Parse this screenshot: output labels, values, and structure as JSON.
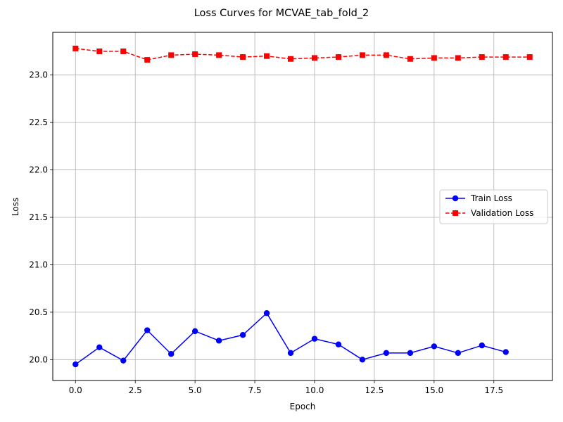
{
  "chart_data": {
    "type": "line",
    "title": "Loss Curves for MCVAE_tab_fold_2",
    "xlabel": "Epoch",
    "ylabel": "Loss",
    "xlim": [
      -0.95,
      19.95
    ],
    "ylim": [
      19.78,
      23.45
    ],
    "xticks": [
      0.0,
      2.5,
      5.0,
      7.5,
      10.0,
      12.5,
      15.0,
      17.5
    ],
    "xtick_labels": [
      "0.0",
      "2.5",
      "5.0",
      "7.5",
      "10.0",
      "12.5",
      "15.0",
      "17.5"
    ],
    "yticks": [
      20.0,
      20.5,
      21.0,
      21.5,
      22.0,
      22.5,
      23.0
    ],
    "ytick_labels": [
      "20.0",
      "20.5",
      "21.0",
      "21.5",
      "22.0",
      "22.5",
      "23.0"
    ],
    "grid": true,
    "legend_position": "center-right",
    "series": [
      {
        "name": "Train Loss",
        "color": "#0000ff",
        "linestyle": "solid",
        "marker": "circle",
        "x": [
          0,
          1,
          2,
          3,
          4,
          5,
          6,
          7,
          8,
          9,
          10,
          11,
          12,
          13,
          14,
          15,
          16,
          17,
          18
        ],
        "values": [
          19.95,
          20.13,
          19.99,
          20.31,
          20.06,
          20.3,
          20.2,
          20.26,
          20.49,
          20.07,
          20.22,
          20.16,
          20.0,
          20.07,
          20.07,
          20.14,
          20.07,
          20.15,
          20.08
        ]
      },
      {
        "name": "Validation Loss",
        "color": "#ff0000",
        "linestyle": "dashed",
        "marker": "square",
        "x": [
          0,
          1,
          2,
          3,
          4,
          5,
          6,
          7,
          8,
          9,
          10,
          11,
          12,
          13,
          14,
          15,
          16,
          17,
          18,
          19
        ],
        "values": [
          23.28,
          23.25,
          23.25,
          23.16,
          23.21,
          23.22,
          23.21,
          23.19,
          23.2,
          23.17,
          23.18,
          23.19,
          23.21,
          23.21,
          23.17,
          23.18,
          23.18,
          23.19,
          23.19,
          23.19
        ]
      }
    ]
  }
}
